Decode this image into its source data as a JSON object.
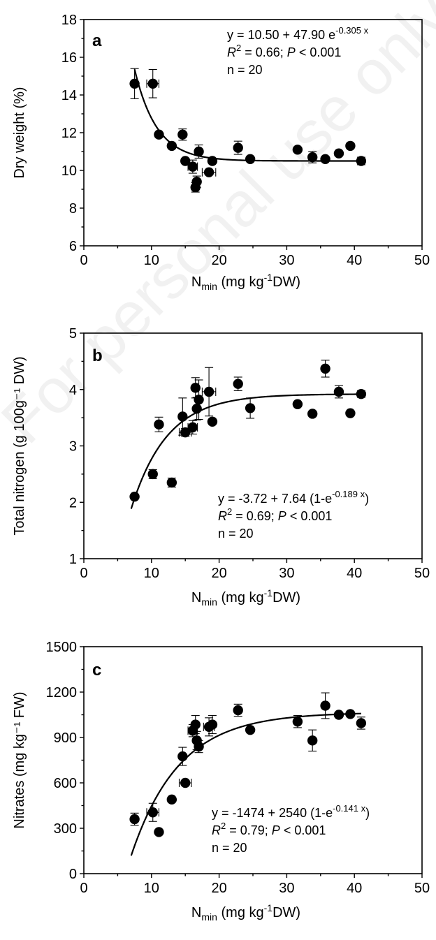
{
  "watermark": "For personal use only",
  "chart_data": [
    {
      "panel": "a",
      "type": "scatter",
      "xlabel": {
        "base": "N",
        "sub": "min",
        "unit_prefix": " (mg kg",
        "sup": "-1",
        "unit_suffix": "DW)"
      },
      "ylabel": "Dry weight (%)",
      "xlim": [
        0,
        50
      ],
      "ylim": [
        6,
        18
      ],
      "xticks": [
        "0",
        "10",
        "20",
        "30",
        "40",
        "50"
      ],
      "yticks": [
        "6",
        "8",
        "10",
        "12",
        "14",
        "16",
        "18"
      ],
      "annotation": {
        "line1_prefix": "y = 10.50 + 47.90 e",
        "line1_sup": "-0.305 x",
        "line2_r": "R",
        "line2_r_sup": "2",
        "line2_mid": " = 0.66; ",
        "line2_p": "P",
        "line2_end": " < 0.001",
        "line3": "n = 20"
      },
      "fit": {
        "model": "exp_decay",
        "a": 10.5,
        "b": 47.9,
        "k": 0.305,
        "x_range": [
          7.5,
          41
        ]
      },
      "points": [
        {
          "x": 7.5,
          "y": 14.6,
          "ey": 0.8,
          "ex": 0
        },
        {
          "x": 10.2,
          "y": 14.6,
          "ey": 0.75,
          "ex": 0.9
        },
        {
          "x": 11.1,
          "y": 11.9,
          "ey": 0,
          "ex": 0
        },
        {
          "x": 13.0,
          "y": 11.3,
          "ey": 0,
          "ex": 0
        },
        {
          "x": 14.6,
          "y": 11.9,
          "ey": 0.3,
          "ex": 0
        },
        {
          "x": 15.0,
          "y": 10.5,
          "ey": 0,
          "ex": 0
        },
        {
          "x": 16.1,
          "y": 10.2,
          "ey": 0.35,
          "ex": 0.7
        },
        {
          "x": 16.5,
          "y": 9.1,
          "ey": 0.25,
          "ex": 0
        },
        {
          "x": 16.7,
          "y": 9.4,
          "ey": 0.3,
          "ex": 0
        },
        {
          "x": 17.0,
          "y": 11.0,
          "ey": 0.35,
          "ex": 0
        },
        {
          "x": 18.5,
          "y": 9.9,
          "ey": 0,
          "ex": 1.0
        },
        {
          "x": 19.0,
          "y": 10.5,
          "ey": 0,
          "ex": 0
        },
        {
          "x": 22.8,
          "y": 11.2,
          "ey": 0.35,
          "ex": 0
        },
        {
          "x": 24.6,
          "y": 10.6,
          "ey": 0,
          "ex": 0
        },
        {
          "x": 31.6,
          "y": 11.1,
          "ey": 0,
          "ex": 0
        },
        {
          "x": 33.8,
          "y": 10.7,
          "ey": 0.3,
          "ex": 0
        },
        {
          "x": 35.7,
          "y": 10.6,
          "ey": 0,
          "ex": 0
        },
        {
          "x": 37.7,
          "y": 10.9,
          "ey": 0,
          "ex": 0
        },
        {
          "x": 39.4,
          "y": 11.3,
          "ey": 0,
          "ex": 0
        },
        {
          "x": 41.0,
          "y": 10.5,
          "ey": 0.2,
          "ex": 0
        }
      ]
    },
    {
      "panel": "b",
      "type": "scatter",
      "xlabel": {
        "base": "N",
        "sub": "min",
        "unit_prefix": " (mg kg",
        "sup": "-1",
        "unit_suffix": "DW)"
      },
      "ylabel": "Total nitrogen (g 100g⁻¹ DW)",
      "xlim": [
        0,
        50
      ],
      "ylim": [
        1,
        5
      ],
      "xticks": [
        "0",
        "10",
        "20",
        "30",
        "40",
        "50"
      ],
      "yticks": [
        "1",
        "2",
        "3",
        "4",
        "5"
      ],
      "annotation": {
        "line1_prefix": "y = -3.72 + 7.64 (1-e",
        "line1_sup": "-0.189 x",
        "line1_suffix": ")",
        "line2_r": "R",
        "line2_r_sup": "2",
        "line2_mid": " = 0.69; ",
        "line2_p": "P",
        "line2_end": " < 0.001",
        "line3": "n = 20"
      },
      "fit": {
        "model": "exp_rise",
        "a": -3.72,
        "b": 7.64,
        "k": 0.189,
        "x_range": [
          7,
          41
        ]
      },
      "points": [
        {
          "x": 7.5,
          "y": 2.1,
          "ey": 0,
          "ex": 0
        },
        {
          "x": 10.2,
          "y": 2.5,
          "ey": 0.08,
          "ex": 0
        },
        {
          "x": 11.1,
          "y": 3.38,
          "ey": 0.13,
          "ex": 0
        },
        {
          "x": 13.0,
          "y": 2.35,
          "ey": 0.08,
          "ex": 0
        },
        {
          "x": 14.6,
          "y": 3.52,
          "ey": 0.33,
          "ex": 0
        },
        {
          "x": 15.0,
          "y": 3.24,
          "ey": 0.07,
          "ex": 0.9
        },
        {
          "x": 16.1,
          "y": 3.33,
          "ey": 0.12,
          "ex": 0.7
        },
        {
          "x": 16.5,
          "y": 4.03,
          "ey": 0.18,
          "ex": 0
        },
        {
          "x": 16.7,
          "y": 3.66,
          "ey": 0.2,
          "ex": 0
        },
        {
          "x": 17.0,
          "y": 3.82,
          "ey": 0.35,
          "ex": 0
        },
        {
          "x": 18.5,
          "y": 3.96,
          "ey": 0.43,
          "ex": 1.0
        },
        {
          "x": 19.0,
          "y": 3.43,
          "ey": 0,
          "ex": 0
        },
        {
          "x": 22.8,
          "y": 4.1,
          "ey": 0.12,
          "ex": 0
        },
        {
          "x": 24.6,
          "y": 3.67,
          "ey": 0.18,
          "ex": 0
        },
        {
          "x": 31.6,
          "y": 3.74,
          "ey": 0,
          "ex": 0
        },
        {
          "x": 33.8,
          "y": 3.57,
          "ey": 0,
          "ex": 0
        },
        {
          "x": 35.7,
          "y": 4.37,
          "ey": 0.15,
          "ex": 0
        },
        {
          "x": 37.7,
          "y": 3.96,
          "ey": 0.11,
          "ex": 0
        },
        {
          "x": 39.4,
          "y": 3.58,
          "ey": 0,
          "ex": 0
        },
        {
          "x": 41.0,
          "y": 3.92,
          "ey": 0.06,
          "ex": 0
        }
      ]
    },
    {
      "panel": "c",
      "type": "scatter",
      "xlabel": {
        "base": "N",
        "sub": "min",
        "unit_prefix": " (mg kg",
        "sup": "-1",
        "unit_suffix": "DW)"
      },
      "ylabel": "Nitrates (mg kg⁻¹ FW)",
      "xlim": [
        0,
        50
      ],
      "ylim": [
        0,
        1500
      ],
      "xticks": [
        "0",
        "10",
        "20",
        "30",
        "40",
        "50"
      ],
      "yticks": [
        "0",
        "300",
        "600",
        "900",
        "1200",
        "1500"
      ],
      "annotation": {
        "line1_prefix": "y = -1474 + 2540 (1-e",
        "line1_sup": "-0.141 x",
        "line1_suffix": ")",
        "line2_r": "R",
        "line2_r_sup": "2",
        "line2_mid": " = 0.79; ",
        "line2_p": "P",
        "line2_end": " < 0.001",
        "line3": "n = 20"
      },
      "fit": {
        "model": "exp_rise",
        "a": -1474,
        "b": 2540,
        "k": 0.141,
        "x_range": [
          7,
          41
        ]
      },
      "points": [
        {
          "x": 7.5,
          "y": 360,
          "ey": 40,
          "ex": 0
        },
        {
          "x": 10.2,
          "y": 405,
          "ey": 60,
          "ex": 0.9
        },
        {
          "x": 11.1,
          "y": 275,
          "ey": 0,
          "ex": 0
        },
        {
          "x": 13.0,
          "y": 490,
          "ey": 0,
          "ex": 0
        },
        {
          "x": 14.6,
          "y": 775,
          "ey": 60,
          "ex": 0
        },
        {
          "x": 15.0,
          "y": 600,
          "ey": 0,
          "ex": 0.9
        },
        {
          "x": 16.1,
          "y": 945,
          "ey": 40,
          "ex": 0.7
        },
        {
          "x": 16.5,
          "y": 985,
          "ey": 60,
          "ex": 0
        },
        {
          "x": 16.7,
          "y": 880,
          "ey": 60,
          "ex": 0
        },
        {
          "x": 17.0,
          "y": 840,
          "ey": 40,
          "ex": 0
        },
        {
          "x": 18.5,
          "y": 970,
          "ey": 60,
          "ex": 0.8
        },
        {
          "x": 19.0,
          "y": 985,
          "ey": 60,
          "ex": 0
        },
        {
          "x": 22.8,
          "y": 1080,
          "ey": 40,
          "ex": 0
        },
        {
          "x": 24.6,
          "y": 950,
          "ey": 0,
          "ex": 0
        },
        {
          "x": 31.6,
          "y": 1005,
          "ey": 40,
          "ex": 0
        },
        {
          "x": 33.8,
          "y": 880,
          "ey": 70,
          "ex": 0
        },
        {
          "x": 35.7,
          "y": 1110,
          "ey": 85,
          "ex": 0
        },
        {
          "x": 37.7,
          "y": 1050,
          "ey": 0,
          "ex": 0
        },
        {
          "x": 39.4,
          "y": 1055,
          "ey": 0,
          "ex": 0
        },
        {
          "x": 41.0,
          "y": 995,
          "ey": 40,
          "ex": 0
        }
      ]
    }
  ]
}
